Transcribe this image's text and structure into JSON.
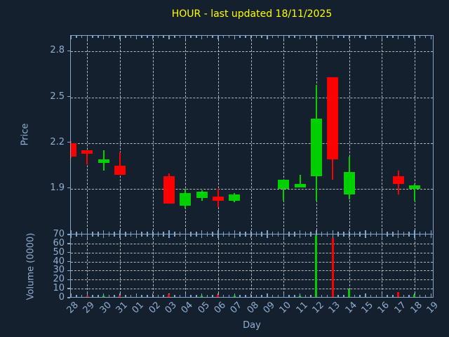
{
  "title": "HOUR - last updated 18/11/2025",
  "colors": {
    "background": "#15202e",
    "title": "#ffff00",
    "axis_frame": "#84a7c9",
    "tick_labels": "#8fafd2",
    "gridlines": "#d2d2d2",
    "candle_up": "#00d000",
    "candle_down": "#ff0000"
  },
  "chart_data": {
    "type": "candlestick-with-volume",
    "title": "HOUR - last updated 18/11/2025",
    "xlabel": "Day",
    "price_ylabel": "Price",
    "volume_ylabel": "Volume (0000)",
    "grid": true,
    "price_ticks": [
      1.9,
      2.2,
      2.5,
      2.8
    ],
    "price_ylim": [
      1.59,
      2.9
    ],
    "volume_ticks": [
      0,
      10,
      20,
      30,
      40,
      50,
      60,
      70
    ],
    "volume_ylim": [
      0,
      70
    ],
    "x_categories": [
      "28",
      "29",
      "30",
      "31",
      "01",
      "02",
      "03",
      "04",
      "05",
      "06",
      "07",
      "08",
      "09",
      "10",
      "11",
      "12",
      "13",
      "14",
      "15",
      "16",
      "17",
      "18",
      "19"
    ],
    "vertical_grid_days": [
      "29",
      "31",
      "02",
      "04",
      "06",
      "08",
      "10",
      "12",
      "14",
      "16",
      "18"
    ],
    "candles": [
      {
        "day": "28",
        "open": 2.2,
        "high": 2.21,
        "low": 2.1,
        "close": 2.11,
        "volume": 0
      },
      {
        "day": "29",
        "open": 2.15,
        "high": 2.15,
        "low": 2.06,
        "close": 2.13,
        "volume": 2
      },
      {
        "day": "30",
        "open": 2.07,
        "high": 2.15,
        "low": 2.02,
        "close": 2.09,
        "volume": 2
      },
      {
        "day": "31",
        "open": 2.05,
        "high": 2.14,
        "low": 1.99,
        "close": 1.99,
        "volume": 2
      },
      {
        "day": "03",
        "open": 1.98,
        "high": 2.0,
        "low": 1.8,
        "close": 1.8,
        "volume": 4
      },
      {
        "day": "04",
        "open": 1.79,
        "high": 1.9,
        "low": 1.77,
        "close": 1.87,
        "volume": 1
      },
      {
        "day": "05",
        "open": 1.84,
        "high": 1.89,
        "low": 1.82,
        "close": 1.88,
        "volume": 2
      },
      {
        "day": "06",
        "open": 1.85,
        "high": 1.9,
        "low": 1.78,
        "close": 1.82,
        "volume": 3
      },
      {
        "day": "07",
        "open": 1.82,
        "high": 1.87,
        "low": 1.81,
        "close": 1.86,
        "volume": 2
      },
      {
        "day": "10",
        "open": 1.9,
        "high": 1.96,
        "low": 1.82,
        "close": 1.96,
        "volume": 1
      },
      {
        "day": "11",
        "open": 1.91,
        "high": 1.99,
        "low": 1.91,
        "close": 1.93,
        "volume": 2
      },
      {
        "day": "12",
        "open": 1.98,
        "high": 2.58,
        "low": 1.82,
        "close": 2.36,
        "volume": 69
      },
      {
        "day": "13",
        "open": 2.63,
        "high": 2.63,
        "low": 1.96,
        "close": 2.09,
        "volume": 66
      },
      {
        "day": "14",
        "open": 1.86,
        "high": 2.11,
        "low": 1.83,
        "close": 2.01,
        "volume": 9
      },
      {
        "day": "17",
        "open": 1.98,
        "high": 2.02,
        "low": 1.86,
        "close": 1.93,
        "volume": 6
      },
      {
        "day": "18",
        "open": 1.9,
        "high": 1.93,
        "low": 1.82,
        "close": 1.92,
        "volume": 3
      }
    ]
  }
}
